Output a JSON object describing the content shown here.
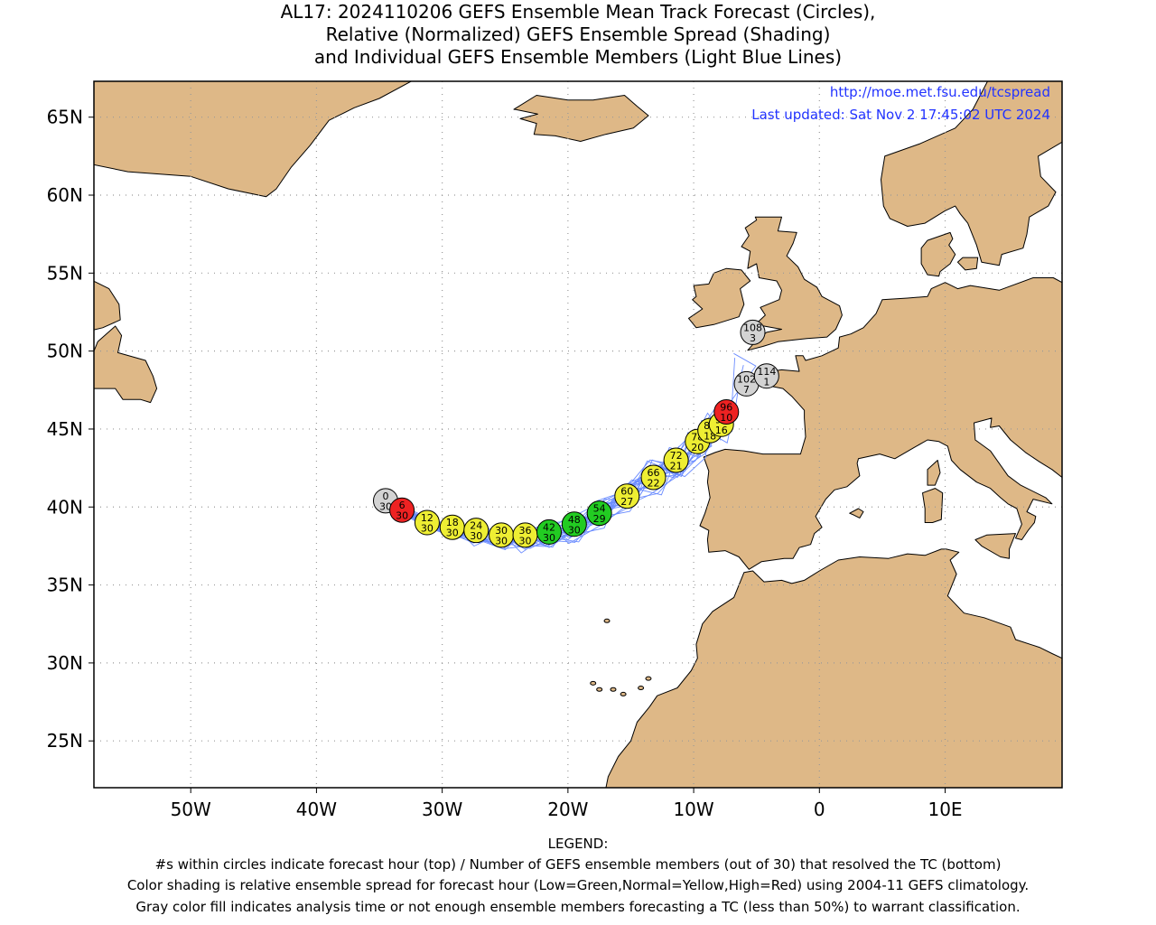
{
  "title_lines": [
    "AL17: 2024110206 GEFS Ensemble Mean Track Forecast (Circles),",
    "Relative (Normalized) GEFS Ensemble Spread (Shading)",
    "and Individual GEFS Ensemble Members (Light Blue Lines)"
  ],
  "url": "http://moe.met.fsu.edu/tcspread",
  "last_updated": "Last updated: Sat Nov 2 17:45:02 UTC 2024",
  "axes": {
    "lat_labels": [
      {
        "lat": 65,
        "label": "65N"
      },
      {
        "lat": 60,
        "label": "60N"
      },
      {
        "lat": 55,
        "label": "55N"
      },
      {
        "lat": 50,
        "label": "50N"
      },
      {
        "lat": 45,
        "label": "45N"
      },
      {
        "lat": 40,
        "label": "40N"
      },
      {
        "lat": 35,
        "label": "35N"
      },
      {
        "lat": 30,
        "label": "30N"
      },
      {
        "lat": 25,
        "label": "25N"
      }
    ],
    "lon_labels": [
      {
        "lon": -50,
        "label": "50W"
      },
      {
        "lon": -40,
        "label": "40W"
      },
      {
        "lon": -30,
        "label": "30W"
      },
      {
        "lon": -20,
        "label": "20W"
      },
      {
        "lon": -10,
        "label": "10W"
      },
      {
        "lon": 0,
        "label": "0"
      },
      {
        "lon": 10,
        "label": "10E"
      }
    ],
    "lon_range": [
      -57.7,
      19.3
    ],
    "lat_range": [
      22,
      67.3
    ]
  },
  "colors": {
    "land": "#deb887",
    "ocean": "#ffffff",
    "member_tracks": "#6b8cff",
    "low_spread": "#22cc22",
    "normal_spread": "#eeee33",
    "high_spread": "#ee2222",
    "gray": "#d3d3d3",
    "credit_text": "#2233ff"
  },
  "track": [
    {
      "hour": "0",
      "members": "30",
      "lon": -34.5,
      "lat": 40.4,
      "class": "gray"
    },
    {
      "hour": "6",
      "members": "30",
      "lon": -33.2,
      "lat": 39.8,
      "class": "high"
    },
    {
      "hour": "12",
      "members": "30",
      "lon": -31.2,
      "lat": 39.0,
      "class": "normal"
    },
    {
      "hour": "18",
      "members": "30",
      "lon": -29.2,
      "lat": 38.7,
      "class": "normal"
    },
    {
      "hour": "24",
      "members": "30",
      "lon": -27.3,
      "lat": 38.5,
      "class": "normal"
    },
    {
      "hour": "30",
      "members": "30",
      "lon": -25.3,
      "lat": 38.2,
      "class": "normal"
    },
    {
      "hour": "36",
      "members": "30",
      "lon": -23.4,
      "lat": 38.2,
      "class": "normal"
    },
    {
      "hour": "42",
      "members": "30",
      "lon": -21.5,
      "lat": 38.4,
      "class": "low"
    },
    {
      "hour": "48",
      "members": "30",
      "lon": -19.5,
      "lat": 38.9,
      "class": "low"
    },
    {
      "hour": "54",
      "members": "29",
      "lon": -17.5,
      "lat": 39.6,
      "class": "low"
    },
    {
      "hour": "60",
      "members": "27",
      "lon": -15.3,
      "lat": 40.7,
      "class": "normal"
    },
    {
      "hour": "66",
      "members": "22",
      "lon": -13.2,
      "lat": 41.9,
      "class": "normal"
    },
    {
      "hour": "72",
      "members": "21",
      "lon": -11.4,
      "lat": 43.0,
      "class": "normal"
    },
    {
      "hour": "78",
      "members": "20",
      "lon": -9.7,
      "lat": 44.2,
      "class": "normal"
    },
    {
      "hour": "84",
      "members": "18",
      "lon": -8.7,
      "lat": 44.9,
      "class": "normal"
    },
    {
      "hour": "90",
      "members": "16",
      "lon": -7.8,
      "lat": 45.3,
      "class": "normal"
    },
    {
      "hour": "96",
      "members": "10",
      "lon": -7.4,
      "lat": 46.1,
      "class": "high"
    },
    {
      "hour": "102",
      "members": "7",
      "lon": -5.8,
      "lat": 47.9,
      "class": "gray"
    },
    {
      "hour": "108",
      "members": "3",
      "lon": -5.3,
      "lat": 51.2,
      "class": "gray"
    },
    {
      "hour": "114",
      "members": "1",
      "lon": -4.2,
      "lat": 48.4,
      "class": "gray"
    }
  ],
  "legend": {
    "heading": "LEGEND:",
    "lines": [
      "#s within circles indicate forecast hour (top) / Number of GEFS ensemble members (out of 30) that resolved the TC (bottom)",
      "Color shading is relative ensemble spread for forecast hour (Low=Green,Normal=Yellow,High=Red) using 2004-11 GEFS climatology.",
      "Gray color fill indicates analysis time or not enough ensemble members forecasting a TC (less than 50%) to warrant classification."
    ]
  }
}
